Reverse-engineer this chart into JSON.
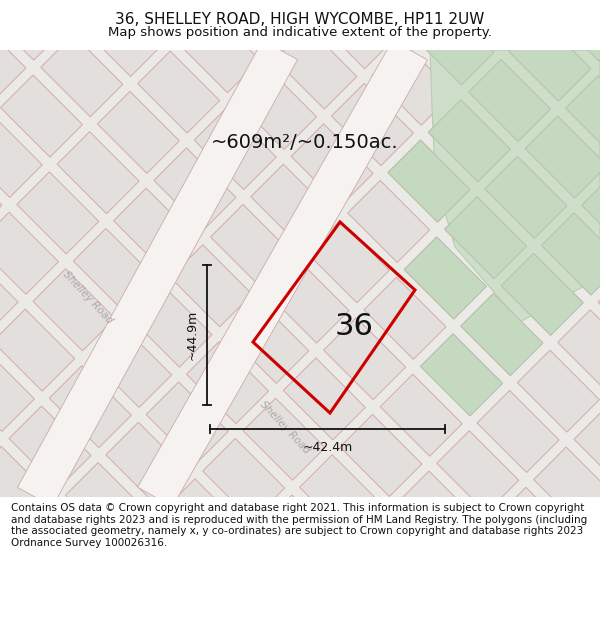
{
  "title": "36, SHELLEY ROAD, HIGH WYCOMBE, HP11 2UW",
  "subtitle": "Map shows position and indicative extent of the property.",
  "area_text": "~609m²/~0.150ac.",
  "dim_vertical": "~44.9m",
  "dim_horizontal": "~42.4m",
  "house_number": "36",
  "footer": "Contains OS data © Crown copyright and database right 2021. This information is subject to Crown copyright and database rights 2023 and is reproduced with the permission of HM Land Registry. The polygons (including the associated geometry, namely x, y co-ordinates) are subject to Crown copyright and database rights 2023 Ordnance Survey 100026316.",
  "map_bg": "#eceae6",
  "lot_fill": "#e2dfdc",
  "lot_edge": "#d4aaaa",
  "road_fill": "#f5f2ef",
  "road_edge": "#ccaaaa",
  "green_fill": "#cfdec9",
  "green_edge": "#b8ccb4",
  "plot_color": "#cc0000",
  "dim_color": "#111111",
  "road_label_color": "#aaaaaa",
  "text_color": "#111111",
  "shelley_road": "Shelley Road",
  "title_fontsize": 11,
  "subtitle_fontsize": 9.5,
  "footer_fontsize": 7.5
}
